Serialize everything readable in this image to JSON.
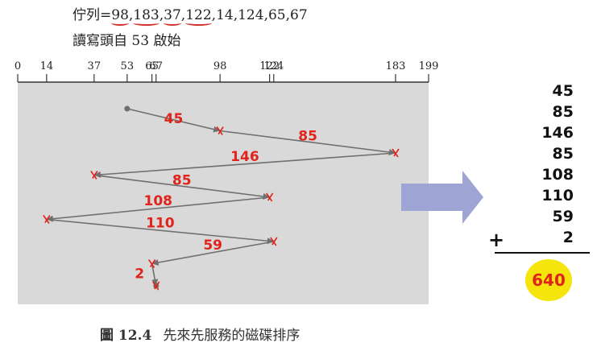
{
  "header": {
    "queue_prefix": "佇列=",
    "requests": [
      {
        "text": "98",
        "marked": true
      },
      {
        "text": "183",
        "marked": true
      },
      {
        "text": "37",
        "marked": true
      },
      {
        "text": "122",
        "marked": true
      },
      {
        "text": "14",
        "marked": false
      },
      {
        "text": "124",
        "marked": false
      },
      {
        "text": "65",
        "marked": false
      },
      {
        "text": "67",
        "marked": false
      }
    ],
    "start_text": "讀寫頭自 53 啟始"
  },
  "axis": {
    "min": 0,
    "max": 199,
    "ticks": [
      0,
      14,
      37,
      53,
      65,
      67,
      98,
      122,
      124,
      183,
      199
    ]
  },
  "head_path": {
    "positions": [
      53,
      98,
      183,
      37,
      122,
      14,
      124,
      65,
      67
    ],
    "segment_labels": [
      "45",
      "85",
      "146",
      "85",
      "108",
      "110",
      "59",
      "2"
    ]
  },
  "answer": {
    "addends": [
      "45",
      "85",
      "146",
      "85",
      "108",
      "110",
      "59",
      "2"
    ],
    "operator": "+",
    "total": "640"
  },
  "caption": {
    "number": "圖 12.4",
    "text": "先來先服務的磁碟排序"
  },
  "colors": {
    "panel": "#d9d9d9",
    "path": "#6f6f6f",
    "annotation": "#e0241b",
    "arrow": "#9ea4d3",
    "highlight": "#f5e50c"
  }
}
